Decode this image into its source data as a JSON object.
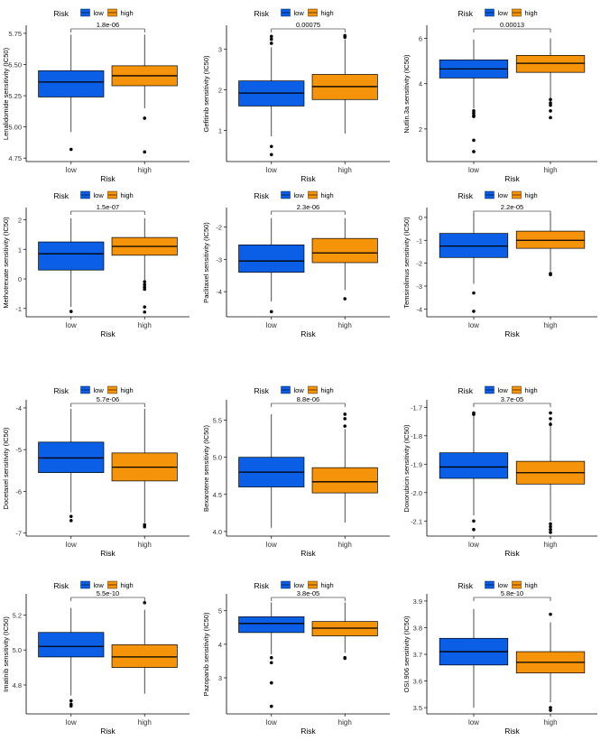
{
  "legend": {
    "title": "Risk",
    "low_label": "low",
    "high_label": "high"
  },
  "colors": {
    "low": "#0a5fe6",
    "high": "#f5930a",
    "outlier": "#000000",
    "axis": "#000000",
    "bracket": "#000000"
  },
  "chart_data": [
    {
      "type": "box",
      "title": "",
      "ylabel": "Lenalidomide sensitivity (IC50)",
      "xlabel": "Risk",
      "categories": [
        "low",
        "high"
      ],
      "ylim": [
        4.73,
        5.8
      ],
      "yticks": [
        4.75,
        5.0,
        5.25,
        5.5,
        5.75
      ],
      "ytick_labels": [
        "4.75",
        "5.00",
        "5.25",
        "5.50",
        "5.75"
      ],
      "pvalue": "1.8e-06",
      "boxes": [
        {
          "group": "low",
          "whisker_low": 4.96,
          "q1": 5.24,
          "median": 5.36,
          "q3": 5.45,
          "whisker_high": 5.74,
          "outliers": [
            4.82
          ]
        },
        {
          "group": "high",
          "whisker_low": 5.15,
          "q1": 5.33,
          "median": 5.41,
          "q3": 5.49,
          "whisker_high": 5.74,
          "outliers": [
            5.07,
            4.8
          ]
        }
      ]
    },
    {
      "type": "box",
      "title": "",
      "ylabel": "Gefitinib sensitivity (IC50)",
      "xlabel": "Risk",
      "categories": [
        "low",
        "high"
      ],
      "ylim": [
        0.25,
        3.55
      ],
      "yticks": [
        1,
        2,
        3
      ],
      "ytick_labels": [
        "1",
        "2",
        "3"
      ],
      "pvalue": "0.00075",
      "boxes": [
        {
          "group": "low",
          "whisker_low": 0.85,
          "q1": 1.6,
          "median": 1.92,
          "q3": 2.22,
          "whisker_high": 3.05,
          "outliers": [
            3.15,
            3.25,
            3.32,
            0.6,
            0.4
          ]
        },
        {
          "group": "high",
          "whisker_low": 0.92,
          "q1": 1.76,
          "median": 2.08,
          "q3": 2.38,
          "whisker_high": 3.25,
          "outliers": [
            3.3,
            3.34
          ]
        }
      ]
    },
    {
      "type": "box",
      "title": "",
      "ylabel": "Nutlin.3a sensitivity (IC50)",
      "xlabel": "Risk",
      "categories": [
        "low",
        "high"
      ],
      "ylim": [
        0.6,
        6.5
      ],
      "yticks": [
        2,
        4,
        6
      ],
      "ytick_labels": [
        "2",
        "4",
        "6"
      ],
      "pvalue": "0.00013",
      "boxes": [
        {
          "group": "low",
          "whisker_low": 2.9,
          "q1": 4.25,
          "median": 4.65,
          "q3": 5.05,
          "whisker_high": 5.95,
          "outliers": [
            2.8,
            2.7,
            2.6,
            2.55,
            1.5,
            1.0
          ]
        },
        {
          "group": "high",
          "whisker_low": 3.35,
          "q1": 4.5,
          "median": 4.9,
          "q3": 5.25,
          "whisker_high": 6.0,
          "outliers": [
            3.3,
            3.15,
            3.05,
            2.8,
            2.5
          ]
        }
      ]
    },
    {
      "type": "box",
      "title": "",
      "ylabel": "Methotrexate sensitivity (IC50)",
      "xlabel": "Risk",
      "categories": [
        "low",
        "high"
      ],
      "ylim": [
        -1.25,
        2.35
      ],
      "yticks": [
        -1,
        0,
        1,
        2
      ],
      "ytick_labels": [
        "-1",
        "0",
        "1",
        "2"
      ],
      "pvalue": "1.5e-07",
      "boxes": [
        {
          "group": "low",
          "whisker_low": -0.95,
          "q1": 0.3,
          "median": 0.85,
          "q3": 1.25,
          "whisker_high": 2.05,
          "outliers": [
            -1.1
          ]
        },
        {
          "group": "high",
          "whisker_low": -0.05,
          "q1": 0.8,
          "median": 1.1,
          "q3": 1.4,
          "whisker_high": 2.05,
          "outliers": [
            -0.1,
            -0.2,
            -0.28,
            -0.35,
            -0.95,
            -1.12
          ]
        }
      ]
    },
    {
      "type": "box",
      "title": "",
      "ylabel": "Paclitaxel sensitivity (IC50)",
      "xlabel": "Risk",
      "categories": [
        "low",
        "high"
      ],
      "ylim": [
        -4.75,
        -1.45
      ],
      "yticks": [
        -4,
        -3,
        -2
      ],
      "ytick_labels": [
        "-4",
        "-3",
        "-2"
      ],
      "pvalue": "2.3e-06",
      "boxes": [
        {
          "group": "low",
          "whisker_low": -4.3,
          "q1": -3.4,
          "median": -3.05,
          "q3": -2.55,
          "whisker_high": -1.72,
          "outliers": [
            -4.62
          ]
        },
        {
          "group": "high",
          "whisker_low": -3.95,
          "q1": -3.1,
          "median": -2.8,
          "q3": -2.35,
          "whisker_high": -1.72,
          "outliers": [
            -4.22
          ]
        }
      ]
    },
    {
      "type": "box",
      "title": "",
      "ylabel": "Temsirolimus sensitivity (IC50)",
      "xlabel": "Risk",
      "categories": [
        "low",
        "high"
      ],
      "ylim": [
        -4.3,
        0.35
      ],
      "yticks": [
        -4,
        -3,
        -2,
        -1,
        0
      ],
      "ytick_labels": [
        "-4",
        "-3",
        "-2",
        "-1",
        "0"
      ],
      "pvalue": "2.2e-05",
      "boxes": [
        {
          "group": "low",
          "whisker_low": -2.9,
          "q1": -1.75,
          "median": -1.25,
          "q3": -0.7,
          "whisker_high": 0.15,
          "outliers": [
            -3.3,
            -4.1
          ]
        },
        {
          "group": "high",
          "whisker_low": -2.35,
          "q1": -1.35,
          "median": -1.0,
          "q3": -0.6,
          "whisker_high": 0.15,
          "outliers": [
            -2.45,
            -2.5
          ]
        }
      ]
    },
    {
      "type": "box",
      "title": "",
      "ylabel": "Docetaxel sensitivity (IC50)",
      "xlabel": "Risk",
      "categories": [
        "low",
        "high"
      ],
      "ylim": [
        -7.05,
        -3.85
      ],
      "yticks": [
        -7,
        -6,
        -5,
        -4
      ],
      "ytick_labels": [
        "-7",
        "-6",
        "-5",
        "-4"
      ],
      "pvalue": "5.7e-06",
      "boxes": [
        {
          "group": "low",
          "whisker_low": -6.5,
          "q1": -5.55,
          "median": -5.2,
          "q3": -4.82,
          "whisker_high": -4.02,
          "outliers": [
            -6.6,
            -6.7
          ]
        },
        {
          "group": "high",
          "whisker_low": -6.75,
          "q1": -5.75,
          "median": -5.42,
          "q3": -5.08,
          "whisker_high": -4.02,
          "outliers": [
            -6.8,
            -6.85
          ]
        }
      ]
    },
    {
      "type": "box",
      "title": "",
      "ylabel": "Bexarotene sensitivity (IC50)",
      "xlabel": "Risk",
      "categories": [
        "low",
        "high"
      ],
      "ylim": [
        3.95,
        5.75
      ],
      "yticks": [
        4.0,
        4.5,
        5.0,
        5.5
      ],
      "ytick_labels": [
        "4.0",
        "4.5",
        "5.0",
        "5.5"
      ],
      "pvalue": "8.8e-06",
      "boxes": [
        {
          "group": "low",
          "whisker_low": 4.05,
          "q1": 4.6,
          "median": 4.8,
          "q3": 5.0,
          "whisker_high": 5.58,
          "outliers": []
        },
        {
          "group": "high",
          "whisker_low": 4.12,
          "q1": 4.52,
          "median": 4.67,
          "q3": 4.86,
          "whisker_high": 5.38,
          "outliers": [
            5.42,
            5.52,
            5.58
          ]
        }
      ]
    },
    {
      "type": "box",
      "title": "",
      "ylabel": "Doxorubicin sensitivity (IC50)",
      "xlabel": "Risk",
      "categories": [
        "low",
        "high"
      ],
      "ylim": [
        -2.15,
        -1.68
      ],
      "yticks": [
        -2.1,
        -2.0,
        -1.9,
        -1.8,
        -1.7
      ],
      "ytick_labels": [
        "-2.1",
        "-2.0",
        "-1.9",
        "-1.8",
        "-1.7"
      ],
      "pvalue": "3.7e-05",
      "boxes": [
        {
          "group": "low",
          "whisker_low": -2.08,
          "q1": -1.95,
          "median": -1.91,
          "q3": -1.86,
          "whisker_high": -1.73,
          "outliers": [
            -1.72,
            -1.725,
            -2.1,
            -2.13
          ]
        },
        {
          "group": "high",
          "whisker_low": -2.1,
          "q1": -1.97,
          "median": -1.93,
          "q3": -1.89,
          "whisker_high": -1.75,
          "outliers": [
            -1.72,
            -1.74,
            -1.76,
            -2.11,
            -2.12,
            -2.13,
            -2.14
          ]
        }
      ]
    },
    {
      "type": "box",
      "title": "",
      "ylabel": "Imatinib sensitivity (IC50)",
      "xlabel": "Risk",
      "categories": [
        "low",
        "high"
      ],
      "ylim": [
        4.64,
        5.31
      ],
      "yticks": [
        4.8,
        5.0,
        5.2
      ],
      "ytick_labels": [
        "4.8",
        "5.0",
        "5.2"
      ],
      "pvalue": "5.5e-10",
      "boxes": [
        {
          "group": "low",
          "whisker_low": 4.74,
          "q1": 4.96,
          "median": 5.02,
          "q3": 5.1,
          "whisker_high": 5.24,
          "outliers": [
            4.71,
            4.69,
            4.68
          ]
        },
        {
          "group": "high",
          "whisker_low": 4.75,
          "q1": 4.9,
          "median": 4.96,
          "q3": 5.03,
          "whisker_high": 5.23,
          "outliers": [
            5.27
          ]
        }
      ]
    },
    {
      "type": "box",
      "title": "",
      "ylabel": "Pazopanib sensitivity (IC50)",
      "xlabel": "Risk",
      "categories": [
        "low",
        "high"
      ],
      "ylim": [
        1.95,
        5.45
      ],
      "yticks": [
        3,
        4,
        5
      ],
      "ytick_labels": [
        "3",
        "4",
        "5"
      ],
      "pvalue": "3.8e-05",
      "boxes": [
        {
          "group": "low",
          "whisker_low": 3.7,
          "q1": 4.35,
          "median": 4.62,
          "q3": 4.82,
          "whisker_high": 5.25,
          "outliers": [
            3.6,
            3.45,
            2.85,
            2.15
          ]
        },
        {
          "group": "high",
          "whisker_low": 3.75,
          "q1": 4.25,
          "median": 4.48,
          "q3": 4.68,
          "whisker_high": 5.25,
          "outliers": [
            3.6,
            3.58
          ]
        }
      ]
    },
    {
      "type": "box",
      "title": "",
      "ylabel": "OSI.906 sensitivity (IC50)",
      "xlabel": "Risk",
      "categories": [
        "low",
        "high"
      ],
      "ylim": [
        3.48,
        3.92
      ],
      "yticks": [
        3.5,
        3.6,
        3.7,
        3.8,
        3.9
      ],
      "ytick_labels": [
        "3.5",
        "3.6",
        "3.7",
        "3.8",
        "3.9"
      ],
      "pvalue": "5.8e-10",
      "boxes": [
        {
          "group": "low",
          "whisker_low": 3.5,
          "q1": 3.66,
          "median": 3.71,
          "q3": 3.76,
          "whisker_high": 3.87,
          "outliers": []
        },
        {
          "group": "high",
          "whisker_low": 3.52,
          "q1": 3.63,
          "median": 3.67,
          "q3": 3.71,
          "whisker_high": 3.82,
          "outliers": [
            3.85,
            3.5,
            3.49
          ]
        }
      ]
    }
  ]
}
